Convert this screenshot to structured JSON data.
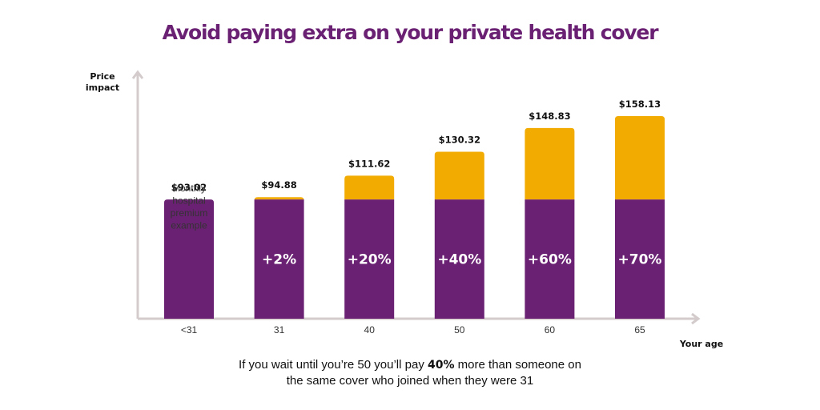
{
  "title": "Avoid paying extra on your private health cover",
  "footnote": {
    "line1_before": "If you wait until you’re 50 you’ll pay ",
    "line1_bold": "40%",
    "line1_after": " more than someone on",
    "line2": "the same cover who joined when they were 31"
  },
  "colors": {
    "base": "#6b2173",
    "increase": "#f2ab00",
    "axis": "#d4cccc",
    "title": "#6b2173"
  },
  "chart_data": {
    "type": "bar",
    "stacked": true,
    "title": "Avoid paying extra on your private health cover",
    "xlabel": "Your age",
    "ylabel": [
      "Price",
      "impact"
    ],
    "categories": [
      "<31",
      "31",
      "40",
      "50",
      "60",
      "65"
    ],
    "totals": [
      "$93.02",
      "$94.88",
      "$111.62",
      "$130.32",
      "$148.83",
      "$158.13"
    ],
    "total_values": [
      93.02,
      94.88,
      111.62,
      130.32,
      148.83,
      158.13
    ],
    "base_value": 93.02,
    "increase_labels": [
      "",
      "+2%",
      "+20%",
      "+40%",
      "+60%",
      "+70%"
    ],
    "annotation": [
      "Monthly",
      "hospital",
      "premium",
      "example"
    ],
    "ylim": [
      0,
      168
    ],
    "grid": false,
    "legend": "none"
  }
}
